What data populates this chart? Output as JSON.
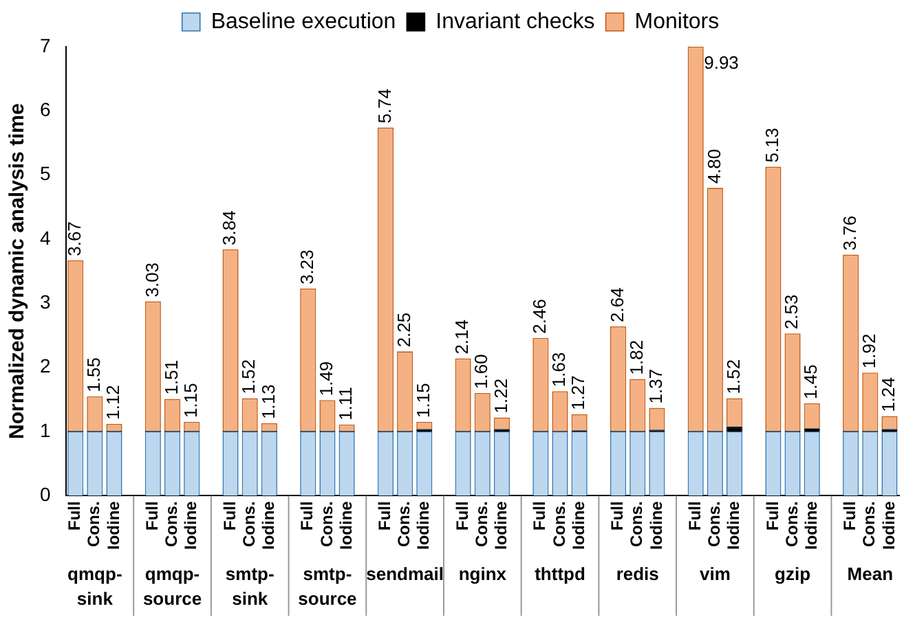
{
  "chart_data": {
    "type": "bar",
    "stacked": true,
    "ylabel": "Normalized dynamic analysis time",
    "categories": [
      "Full",
      "Cons.",
      "Iodine",
      null,
      "Full",
      "Cons.",
      "Iodine",
      null,
      "Full",
      "Cons.",
      "Iodine",
      null,
      "Full",
      "Cons.",
      "Iodine",
      null,
      "Full",
      "Cons.",
      "Iodine",
      null,
      "Full",
      "Cons.",
      "Iodine",
      null,
      "Full",
      "Cons.",
      "Iodine",
      null,
      "Full",
      "Cons.",
      "Iodine",
      null,
      "Full",
      "Cons.",
      "Iodine",
      null,
      "Full",
      "Cons.",
      "Iodine",
      null,
      "Full",
      "Cons.",
      "Iodine"
    ],
    "annotations": [
      "qmqp-sink",
      "qmqp-source",
      "smtp-sink",
      "smtp-source",
      "sendmail",
      "nginx",
      "thttpd",
      "redis",
      "vim",
      "gzip",
      "Mean",
      "9.93"
    ],
    "series": [
      {
        "name": "Baseline execution",
        "color": "#bdd7ee",
        "values": [
          1,
          1,
          1,
          null,
          1,
          1,
          1,
          null,
          1,
          1,
          1,
          null,
          1,
          1,
          1,
          null,
          1,
          1,
          1,
          null,
          1,
          1,
          1,
          null,
          1,
          1,
          1,
          null,
          1,
          1,
          1,
          null,
          1,
          1,
          1,
          null,
          1,
          1,
          1,
          null,
          1,
          1,
          1
        ]
      },
      {
        "name": "Invariant checks",
        "color": "#000000",
        "values": [
          0.01,
          0.01,
          0.01,
          null,
          0.01,
          0.01,
          0.01,
          null,
          0.01,
          0.01,
          0.01,
          null,
          0.01,
          0.01,
          0.01,
          null,
          0.01,
          0.01,
          0.04,
          null,
          0.01,
          0.01,
          0.04,
          null,
          0.01,
          0.01,
          0.02,
          null,
          0.01,
          0.01,
          0.03,
          null,
          0.01,
          0.01,
          0.08,
          null,
          0.01,
          0.01,
          0.05,
          null,
          0.01,
          0.01,
          0.04
        ]
      },
      {
        "name": "Monitors",
        "color": "#f4b183",
        "values": [
          2.66,
          0.54,
          0.11,
          null,
          2.02,
          0.5,
          0.14,
          null,
          2.83,
          0.51,
          0.12,
          null,
          2.22,
          0.48,
          0.1,
          null,
          4.73,
          1.24,
          0.11,
          null,
          1.13,
          0.59,
          0.18,
          null,
          1.45,
          0.62,
          0.25,
          null,
          1.63,
          0.81,
          0.34,
          null,
          5.99,
          3.79,
          0.44,
          null,
          4.12,
          1.52,
          0.39,
          null,
          2.75,
          0.91,
          0.2
        ]
      }
    ],
    "totals": [
      "3.67",
      "1.55",
      "1.12",
      null,
      "3.03",
      "1.51",
      "1.15",
      null,
      "3.84",
      "1.52",
      "1.13",
      null,
      "3.23",
      "1.49",
      "1.11",
      null,
      "5.74",
      "2.25",
      "1.15",
      null,
      "2.14",
      "1.60",
      "1.22",
      null,
      "2.46",
      "1.63",
      "1.27",
      null,
      "2.64",
      "1.82",
      "1.37",
      null,
      null,
      "4.80",
      "1.52",
      null,
      "5.13",
      "2.53",
      "1.45",
      null,
      "3.76",
      "1.92",
      "1.24"
    ],
    "ylim": [
      0,
      7
    ],
    "yticks": [
      0,
      1,
      2,
      3,
      4,
      5,
      6,
      7
    ],
    "grid": false,
    "legend": "top"
  }
}
